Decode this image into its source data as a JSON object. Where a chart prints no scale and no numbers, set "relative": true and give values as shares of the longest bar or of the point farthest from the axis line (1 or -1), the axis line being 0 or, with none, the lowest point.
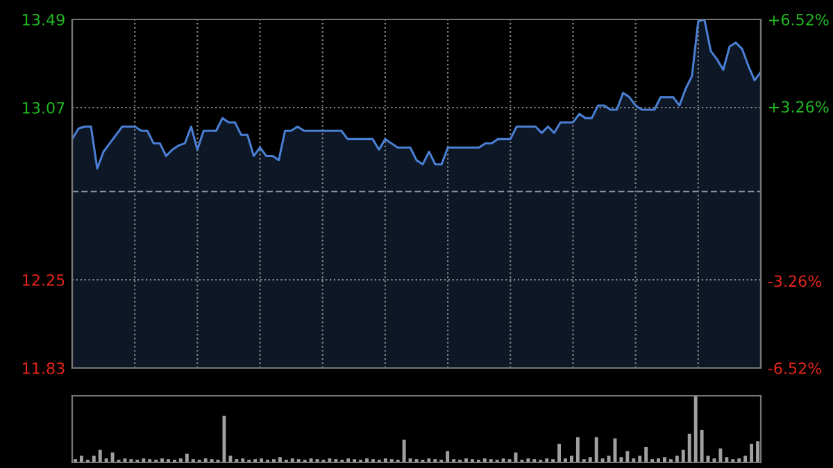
{
  "chart_data": [
    {
      "type": "area",
      "color": "#4a7fd4",
      "categories": [
        null,
        null,
        null,
        null,
        null,
        null,
        null,
        null,
        null,
        null,
        null,
        null,
        null,
        null,
        null,
        null,
        null,
        null,
        null,
        null,
        null,
        null,
        null,
        null,
        null,
        null,
        null,
        null,
        null,
        null,
        null,
        null,
        null,
        null,
        null,
        null,
        null,
        null,
        null,
        null,
        null,
        null,
        null,
        null,
        null,
        null,
        null,
        null,
        null,
        null,
        null,
        null,
        null,
        null,
        null,
        null,
        null,
        null,
        null,
        null,
        null,
        null,
        null,
        null,
        null,
        null,
        null,
        null,
        null,
        null,
        null,
        null,
        null,
        null,
        null,
        null,
        null,
        null,
        null,
        null,
        null,
        null,
        null,
        null,
        null,
        null,
        null,
        null,
        null,
        null,
        null,
        null,
        null,
        null,
        null,
        null,
        null,
        null,
        null,
        null,
        null,
        null,
        null,
        null,
        null,
        null,
        null,
        null,
        null,
        null,
        null
      ],
      "values": [
        12.92,
        12.97,
        12.98,
        12.98,
        12.78,
        12.86,
        12.9,
        12.94,
        12.98,
        12.98,
        12.98,
        12.96,
        12.96,
        12.9,
        12.9,
        12.84,
        12.87,
        12.89,
        12.9,
        12.98,
        12.87,
        12.96,
        12.96,
        12.96,
        13.02,
        13.0,
        13.0,
        12.94,
        12.94,
        12.84,
        12.88,
        12.84,
        12.84,
        12.82,
        12.96,
        12.96,
        12.98,
        12.96,
        12.96,
        12.96,
        12.96,
        12.96,
        12.96,
        12.96,
        12.92,
        12.92,
        12.92,
        12.92,
        12.92,
        12.87,
        12.92,
        12.9,
        12.88,
        12.88,
        12.88,
        12.82,
        12.8,
        12.86,
        12.8,
        12.8,
        12.88,
        12.88,
        12.88,
        12.88,
        12.88,
        12.88,
        12.9,
        12.9,
        12.92,
        12.92,
        12.92,
        12.98,
        12.98,
        12.98,
        12.98,
        12.95,
        12.98,
        12.95,
        13.0,
        13.0,
        13.0,
        13.04,
        13.02,
        13.02,
        13.08,
        13.08,
        13.06,
        13.06,
        13.14,
        13.12,
        13.08,
        13.06,
        13.06,
        13.06,
        13.12,
        13.12,
        13.12,
        13.08,
        13.16,
        13.22,
        13.48,
        13.49,
        13.34,
        13.3,
        13.25,
        13.36,
        13.38,
        13.35,
        13.27,
        13.2,
        13.24
      ],
      "ylim": [
        11.83,
        13.49
      ],
      "yticks": [
        11.83,
        12.25,
        13.07,
        13.49
      ],
      "y2lim": [
        -6.52,
        6.52
      ],
      "y2ticks": [
        {
          "value": -6.52,
          "label": "-6.52%"
        },
        {
          "value": -3.26,
          "label": "-3.26%"
        },
        {
          "value": 3.26,
          "label": "+3.26%"
        },
        {
          "value": 6.52,
          "label": "+6.52%"
        }
      ],
      "ref_lines": [
        {
          "axis": "y",
          "value": 12.67,
          "color": "#7f8fa6",
          "line_style": "dashed"
        }
      ],
      "grid": true
    },
    {
      "type": "bar",
      "relative": true,
      "color": "#a0a0a0",
      "categories": [
        null,
        null,
        null,
        null,
        null,
        null,
        null,
        null,
        null,
        null,
        null,
        null,
        null,
        null,
        null,
        null,
        null,
        null,
        null,
        null,
        null,
        null,
        null,
        null,
        null,
        null,
        null,
        null,
        null,
        null,
        null,
        null,
        null,
        null,
        null,
        null,
        null,
        null,
        null,
        null,
        null,
        null,
        null,
        null,
        null,
        null,
        null,
        null,
        null,
        null,
        null,
        null,
        null,
        null,
        null,
        null,
        null,
        null,
        null,
        null,
        null,
        null,
        null,
        null,
        null,
        null,
        null,
        null,
        null,
        null,
        null,
        null,
        null,
        null,
        null,
        null,
        null,
        null,
        null,
        null,
        null,
        null,
        null,
        null,
        null,
        null,
        null,
        null,
        null,
        null,
        null,
        null,
        null,
        null,
        null,
        null,
        null,
        null,
        null,
        null,
        null,
        null,
        null,
        null,
        null,
        null,
        null,
        null,
        null,
        null,
        null
      ],
      "values": [
        0.05,
        0.1,
        0.04,
        0.1,
        0.19,
        0.06,
        0.15,
        0.04,
        0.06,
        0.05,
        0.04,
        0.06,
        0.05,
        0.04,
        0.06,
        0.05,
        0.04,
        0.06,
        0.13,
        0.05,
        0.04,
        0.06,
        0.05,
        0.04,
        0.7,
        0.1,
        0.05,
        0.06,
        0.04,
        0.05,
        0.06,
        0.04,
        0.05,
        0.08,
        0.04,
        0.06,
        0.05,
        0.04,
        0.06,
        0.05,
        0.04,
        0.06,
        0.05,
        0.04,
        0.06,
        0.05,
        0.04,
        0.06,
        0.05,
        0.04,
        0.06,
        0.05,
        0.04,
        0.34,
        0.06,
        0.05,
        0.04,
        0.06,
        0.05,
        0.04,
        0.17,
        0.05,
        0.04,
        0.06,
        0.05,
        0.04,
        0.06,
        0.05,
        0.04,
        0.06,
        0.05,
        0.15,
        0.04,
        0.06,
        0.05,
        0.04,
        0.06,
        0.05,
        0.28,
        0.06,
        0.1,
        0.38,
        0.05,
        0.08,
        0.38,
        0.06,
        0.1,
        0.36,
        0.08,
        0.17,
        0.06,
        0.1,
        0.23,
        0.05,
        0.06,
        0.08,
        0.05,
        0.1,
        0.19,
        0.43,
        1.0,
        0.49,
        0.1,
        0.06,
        0.21,
        0.08,
        0.05,
        0.06,
        0.1,
        0.28,
        0.32
      ]
    }
  ]
}
